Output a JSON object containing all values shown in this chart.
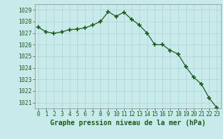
{
  "x": [
    0,
    1,
    2,
    3,
    4,
    5,
    6,
    7,
    8,
    9,
    10,
    11,
    12,
    13,
    14,
    15,
    16,
    17,
    18,
    19,
    20,
    21,
    22,
    23
  ],
  "y": [
    1027.5,
    1027.1,
    1027.0,
    1027.1,
    1027.3,
    1027.35,
    1027.45,
    1027.7,
    1028.0,
    1028.85,
    1028.45,
    1028.8,
    1028.2,
    1027.7,
    1027.0,
    1026.0,
    1026.0,
    1025.5,
    1025.2,
    1024.1,
    1023.2,
    1022.6,
    1021.4,
    1020.55
  ],
  "line_color": "#1a5c1a",
  "marker": "+",
  "marker_size": 4,
  "marker_lw": 1.2,
  "line_width": 0.9,
  "background_color": "#c8eaea",
  "grid_color": "#b0d8d8",
  "title": "Graphe pression niveau de la mer (hPa)",
  "ylim": [
    1020.5,
    1029.5
  ],
  "xlim": [
    -0.5,
    23.5
  ],
  "yticks": [
    1021,
    1022,
    1023,
    1024,
    1025,
    1026,
    1027,
    1028,
    1029
  ],
  "xticks": [
    0,
    1,
    2,
    3,
    4,
    5,
    6,
    7,
    8,
    9,
    10,
    11,
    12,
    13,
    14,
    15,
    16,
    17,
    18,
    19,
    20,
    21,
    22,
    23
  ],
  "tick_fontsize": 5.8,
  "title_fontsize": 7.0,
  "title_color": "#1a5c1a",
  "title_fontweight": "bold",
  "title_fontfamily": "monospace"
}
